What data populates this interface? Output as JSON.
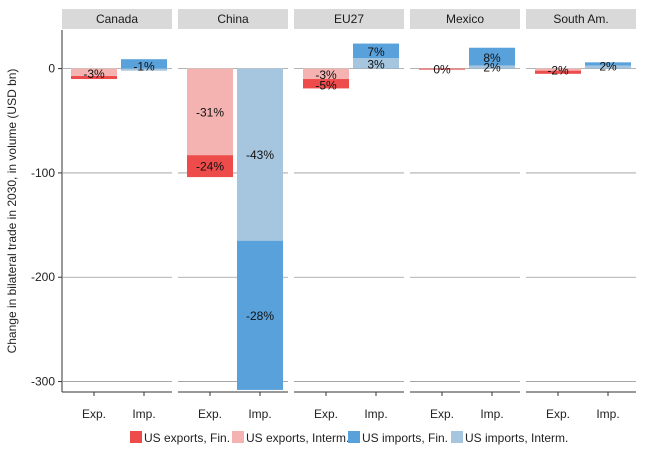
{
  "chart_data": {
    "type": "bar",
    "stacked": true,
    "faceted": true,
    "ylabel": "Change in bilateral trade in 2030, in volume (USD bn)",
    "ylim": [
      -310,
      37
    ],
    "yticks": [
      0,
      -100,
      -200,
      -300
    ],
    "ytick_labels": [
      "0",
      "-100",
      "-200",
      "-300"
    ],
    "grid": true,
    "legend_position": "bottom",
    "bar_categories": [
      "Exp.",
      "Imp."
    ],
    "series": [
      {
        "name": "US exports, Fin.",
        "color": "#ee4b4b"
      },
      {
        "name": "US exports, Interm.",
        "color": "#f4b3b1"
      },
      {
        "name": "US imports, Fin.",
        "color": "#58a1db"
      },
      {
        "name": "US imports, Interm.",
        "color": "#a6c6df"
      }
    ],
    "panels": [
      {
        "name": "Canada",
        "bars": [
          {
            "category": "Exp.",
            "segments": [
              {
                "series": "US exports, Fin.",
                "from": -10,
                "to": -7
              },
              {
                "series": "US exports, Interm.",
                "from": -7,
                "to": 0
              }
            ],
            "labels": [
              {
                "text": "-3%",
                "at": -5
              }
            ]
          },
          {
            "category": "Imp.",
            "segments": [
              {
                "series": "US imports, Fin.",
                "from": 0,
                "to": 9
              },
              {
                "series": "US imports, Interm.",
                "from": -2,
                "to": 0
              }
            ],
            "labels": [
              {
                "text": "-1%",
                "at": 2
              }
            ]
          }
        ]
      },
      {
        "name": "China",
        "bars": [
          {
            "category": "Exp.",
            "segments": [
              {
                "series": "US exports, Interm.",
                "from": -83,
                "to": 0
              },
              {
                "series": "US exports, Fin.",
                "from": -104,
                "to": -83
              }
            ],
            "labels": [
              {
                "text": "-31%",
                "at": -42
              },
              {
                "text": "-24%",
                "at": -94
              }
            ]
          },
          {
            "category": "Imp.",
            "segments": [
              {
                "series": "US imports, Interm.",
                "from": -165,
                "to": 0
              },
              {
                "series": "US imports, Fin.",
                "from": -308,
                "to": -165
              }
            ],
            "labels": [
              {
                "text": "-43%",
                "at": -83
              },
              {
                "text": "-28%",
                "at": -237
              }
            ]
          }
        ]
      },
      {
        "name": "EU27",
        "bars": [
          {
            "category": "Exp.",
            "segments": [
              {
                "series": "US exports, Interm.",
                "from": -10,
                "to": 0
              },
              {
                "series": "US exports, Fin.",
                "from": -19,
                "to": -10
              }
            ],
            "labels": [
              {
                "text": "-3%",
                "at": -6
              },
              {
                "text": "-5%",
                "at": -16
              }
            ]
          },
          {
            "category": "Imp.",
            "segments": [
              {
                "series": "US imports, Interm.",
                "from": 0,
                "to": 10
              },
              {
                "series": "US imports, Fin.",
                "from": 10,
                "to": 24
              }
            ],
            "labels": [
              {
                "text": "7%",
                "at": 16
              },
              {
                "text": "3%",
                "at": 4
              }
            ]
          }
        ]
      },
      {
        "name": "Mexico",
        "bars": [
          {
            "category": "Exp.",
            "segments": [
              {
                "series": "US exports, Fin.",
                "from": -1,
                "to": 0
              }
            ],
            "labels": [
              {
                "text": "0%",
                "at": -1
              }
            ]
          },
          {
            "category": "Imp.",
            "segments": [
              {
                "series": "US imports, Interm.",
                "from": 0,
                "to": 3
              },
              {
                "series": "US imports, Fin.",
                "from": 3,
                "to": 20
              }
            ],
            "labels": [
              {
                "text": "8%",
                "at": 10
              },
              {
                "text": "2%",
                "at": 1
              }
            ]
          }
        ]
      },
      {
        "name": "South Am.",
        "bars": [
          {
            "category": "Exp.",
            "segments": [
              {
                "series": "US exports, Interm.",
                "from": -2,
                "to": 0
              },
              {
                "series": "US exports, Fin.",
                "from": -5,
                "to": -2
              }
            ],
            "labels": [
              {
                "text": "-2%",
                "at": -2
              }
            ]
          },
          {
            "category": "Imp.",
            "segments": [
              {
                "series": "US imports, Interm.",
                "from": 0,
                "to": 3
              },
              {
                "series": "US imports, Fin.",
                "from": 3,
                "to": 6
              }
            ],
            "labels": [
              {
                "text": "2%",
                "at": 2
              }
            ]
          }
        ]
      }
    ]
  }
}
